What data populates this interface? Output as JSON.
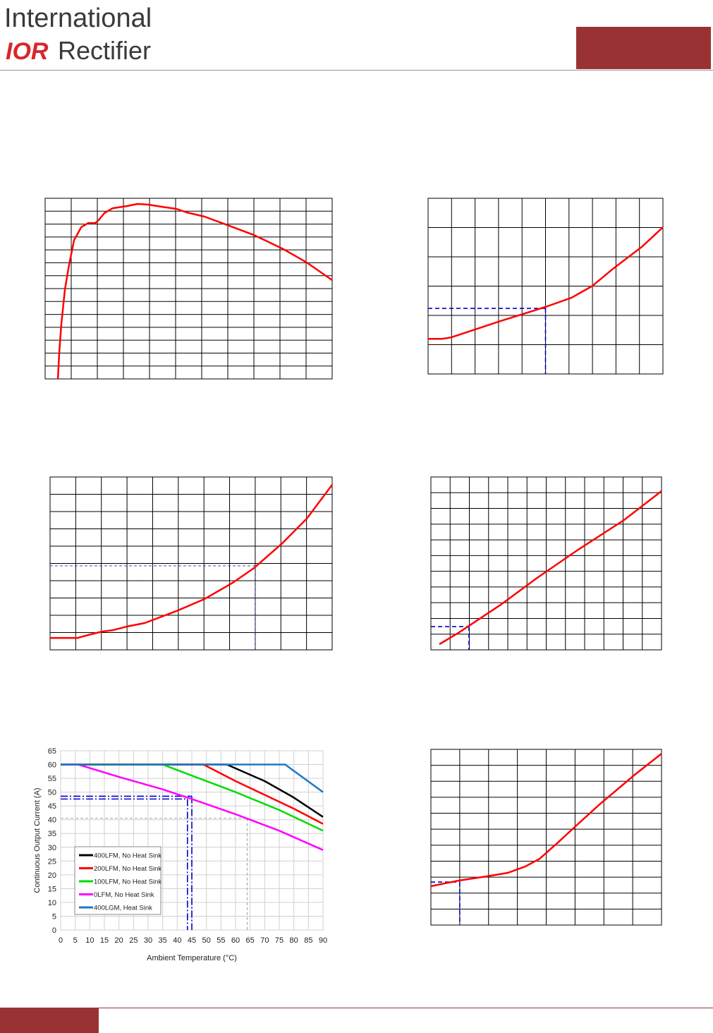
{
  "header": {
    "company_line1": "International",
    "logo": "IOR",
    "company_line2": "Rectifier"
  },
  "chart_data": [
    {
      "type": "line",
      "color": "#ff0000",
      "grid_color": "#000000",
      "xlim": [
        0,
        11
      ],
      "ylim": [
        0,
        14
      ],
      "xgrid": [
        0,
        1,
        2,
        3,
        4,
        5,
        6,
        7,
        8,
        9,
        10,
        11
      ],
      "ygrid": [
        0,
        1,
        2,
        3,
        4,
        5,
        6,
        7,
        8,
        9,
        10,
        11,
        12,
        13,
        14
      ],
      "x": [
        0.49,
        0.54,
        0.62,
        0.76,
        0.92,
        1.11,
        1.38,
        1.65,
        1.92,
        2.05,
        2.27,
        2.59,
        3.14,
        3.54,
        3.95,
        4.49,
        5.03,
        5.43,
        6.11,
        6.92,
        8.0,
        9.08,
        10.03,
        11
      ],
      "values": [
        0,
        2.02,
        4.21,
        6.95,
        8.86,
        10.77,
        11.75,
        12.08,
        12.08,
        12.3,
        12.85,
        13.23,
        13.4,
        13.56,
        13.51,
        13.34,
        13.18,
        12.9,
        12.58,
        11.97,
        11.15,
        10.11,
        9.02,
        7.65
      ],
      "reference_lines": []
    },
    {
      "type": "line",
      "color": "#ff0000",
      "grid_color": "#000000",
      "xlim": [
        0,
        10
      ],
      "ylim": [
        0,
        6
      ],
      "xgrid": [
        0,
        1,
        2,
        3,
        4,
        5,
        6,
        7,
        8,
        9,
        10
      ],
      "ygrid": [
        0,
        1,
        2,
        3,
        4,
        5,
        6
      ],
      "x": [
        0,
        0.6,
        0.99,
        1.89,
        3.09,
        5.0,
        6.1,
        7.0,
        7.9,
        9.1,
        10.0
      ],
      "values": [
        1.2,
        1.2,
        1.25,
        1.49,
        1.81,
        2.29,
        2.6,
        3.01,
        3.61,
        4.34,
        5.01
      ],
      "reference_lines": [
        {
          "x": 5.0,
          "y": 2.24,
          "color": "#0000cc",
          "style": "dashed"
        }
      ]
    },
    {
      "type": "line",
      "color": "#ff0000",
      "grid_color": "#000000",
      "xlim": [
        0,
        11
      ],
      "ylim": [
        0,
        10
      ],
      "xgrid": [
        0,
        1,
        2,
        3,
        4,
        5,
        6,
        7,
        8,
        9,
        10,
        11
      ],
      "ygrid": [
        0,
        1,
        2,
        3,
        4,
        5,
        6,
        7,
        8,
        9,
        10
      ],
      "x": [
        0,
        1.07,
        1.49,
        2.04,
        2.45,
        3.0,
        3.69,
        4.92,
        6.02,
        7.12,
        7.95,
        9.05,
        10.01,
        11
      ],
      "values": [
        0.69,
        0.69,
        0.86,
        1.06,
        1.14,
        1.35,
        1.55,
        2.24,
        2.94,
        3.88,
        4.73,
        6.16,
        7.59,
        9.55
      ],
      "reference_lines": [
        {
          "x": 8.0,
          "y": 4.86,
          "color": "#3333aa",
          "style": "thin"
        }
      ]
    },
    {
      "type": "line",
      "color": "#ff0000",
      "grid_color": "#000000",
      "xlim": [
        0,
        12
      ],
      "ylim": [
        0,
        11
      ],
      "xgrid": [
        0,
        1,
        2,
        3,
        4,
        5,
        6,
        7,
        8,
        9,
        10,
        11,
        12
      ],
      "ygrid": [
        0,
        1,
        2,
        3,
        4,
        5,
        6,
        7,
        8,
        9,
        10,
        11
      ],
      "x": [
        0.44,
        1.43,
        1.98,
        3.63,
        5.47,
        7.67,
        10.05,
        12
      ],
      "values": [
        0.36,
        1.08,
        1.53,
        2.87,
        4.53,
        6.38,
        8.26,
        10.1
      ],
      "reference_lines": [
        {
          "x": 1.98,
          "y": 1.48,
          "color": "#0000cc",
          "style": "dashed"
        }
      ]
    },
    {
      "type": "line",
      "grid_color": "#d0d0d0",
      "xlim": [
        0,
        90
      ],
      "ylim": [
        0,
        65
      ],
      "xticks": [
        0,
        5,
        10,
        15,
        20,
        25,
        30,
        35,
        40,
        45,
        50,
        55,
        60,
        65,
        70,
        75,
        80,
        85,
        90
      ],
      "yticks": [
        0,
        5,
        10,
        15,
        20,
        25,
        30,
        35,
        40,
        45,
        50,
        55,
        60,
        65
      ],
      "x_label": "Ambient Temperature (°C)",
      "y_label": "Continuous Output Current (A)",
      "series": [
        {
          "name": "400LFM, No Heat Sink",
          "color": "#000000",
          "x": [
            0,
            57,
            70,
            80,
            90
          ],
          "values": [
            60,
            60,
            54,
            48,
            41
          ]
        },
        {
          "name": "200LFM, No Heat Sink",
          "color": "#ff0000",
          "x": [
            0,
            49,
            60,
            70,
            80,
            90
          ],
          "values": [
            60,
            60,
            54,
            49,
            44,
            38.5
          ]
        },
        {
          "name": "100LFM, No Heat Sink",
          "color": "#00dd00",
          "x": [
            0,
            35,
            45,
            60,
            75,
            90
          ],
          "values": [
            60,
            60,
            56,
            50,
            43.5,
            36
          ]
        },
        {
          "name": "0LFM, No Heat Sink",
          "color": "#ff00ff",
          "x": [
            0,
            6,
            20,
            35,
            45,
            60,
            75,
            90
          ],
          "values": [
            60,
            60,
            55.5,
            51,
            47.5,
            42,
            36,
            29
          ]
        },
        {
          "name": "400LGM, Heat Sink",
          "color": "#1f78c0",
          "x": [
            0,
            77,
            90
          ],
          "values": [
            60,
            60,
            50
          ]
        }
      ],
      "reference_lines": [
        {
          "x": 45,
          "y": 48.5,
          "color": "#0000cc",
          "style": "dashdot"
        },
        {
          "x": 43.5,
          "y": 47.5,
          "color": "#0000cc",
          "style": "dashdot"
        },
        {
          "x": 64,
          "y": 40.5,
          "color": "#888888",
          "style": "thin"
        }
      ]
    },
    {
      "type": "line",
      "color": "#ff0000",
      "grid_color": "#000000",
      "xlim": [
        0,
        8
      ],
      "ylim": [
        0,
        11
      ],
      "xgrid": [
        0,
        1,
        2,
        3,
        4,
        5,
        6,
        7,
        8
      ],
      "ygrid": [
        0,
        1,
        2,
        3,
        4,
        5,
        6,
        7,
        8,
        9,
        10,
        11
      ],
      "x": [
        0,
        0.95,
        1.93,
        2.67,
        3.28,
        3.77,
        4.38,
        4.99,
        5.85,
        7.07,
        8
      ],
      "values": [
        2.43,
        2.78,
        3.05,
        3.27,
        3.67,
        4.15,
        5.12,
        6.14,
        7.55,
        9.41,
        10.73
      ],
      "reference_lines": [
        {
          "x": 1.0,
          "y": 2.69,
          "color": "#0000cc",
          "style": "dashed"
        }
      ]
    }
  ]
}
